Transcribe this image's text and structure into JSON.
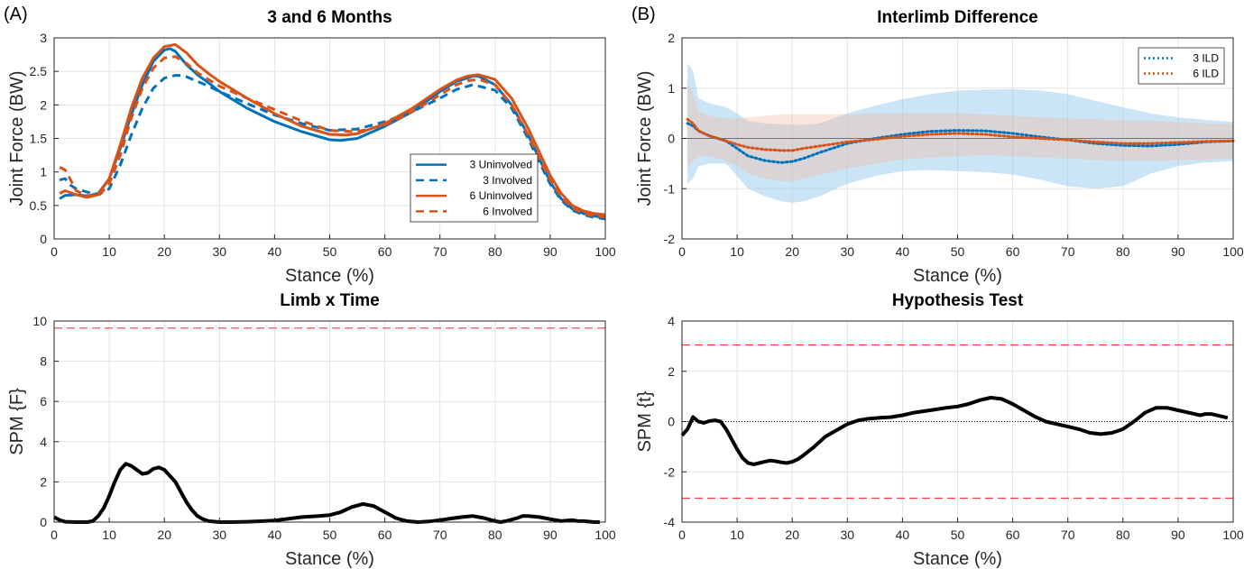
{
  "figure": {
    "panel_labels": [
      "(A)",
      "(B)"
    ]
  },
  "chart_data": [
    {
      "type": "line",
      "title": "3 and 6 Months",
      "xlabel": "Stance (%)",
      "ylabel": "Joint Force (BW)",
      "xlim": [
        0,
        100
      ],
      "ylim": [
        0,
        3
      ],
      "xticks": [
        0,
        10,
        20,
        30,
        40,
        50,
        60,
        70,
        80,
        90,
        100
      ],
      "yticks": [
        0,
        0.5,
        1,
        1.5,
        2,
        2.5,
        3
      ],
      "ytick_labels": [
        "0",
        "0.5",
        "1",
        "1.5",
        "2",
        "2.5",
        "3"
      ],
      "grid": true,
      "legend_position": "bottom-right",
      "series": [
        {
          "name": "3 Uninvolved",
          "color": "#0072BD",
          "style": "solid",
          "x": [
            1,
            2,
            4,
            6,
            8,
            10,
            12,
            14,
            16,
            18,
            20,
            21,
            22,
            24,
            26,
            28,
            30,
            35,
            40,
            45,
            50,
            52,
            55,
            60,
            65,
            70,
            73,
            76,
            77,
            80,
            83,
            86,
            88,
            90,
            92,
            94,
            96,
            98,
            100
          ],
          "y": [
            0.6,
            0.65,
            0.66,
            0.64,
            0.68,
            0.9,
            1.35,
            1.85,
            2.3,
            2.65,
            2.82,
            2.84,
            2.8,
            2.6,
            2.45,
            2.33,
            2.2,
            1.95,
            1.75,
            1.6,
            1.48,
            1.47,
            1.5,
            1.68,
            1.9,
            2.2,
            2.35,
            2.43,
            2.43,
            2.3,
            2.0,
            1.55,
            1.2,
            0.85,
            0.6,
            0.45,
            0.38,
            0.34,
            0.32
          ]
        },
        {
          "name": "3 Involved",
          "color": "#0072BD",
          "style": "dashed",
          "x": [
            1,
            2,
            3,
            4,
            6,
            8,
            10,
            12,
            14,
            16,
            18,
            20,
            22,
            23,
            24,
            26,
            28,
            30,
            35,
            40,
            45,
            50,
            55,
            60,
            65,
            70,
            73,
            76,
            80,
            83,
            86,
            88,
            90,
            92,
            94,
            96,
            98,
            100
          ],
          "y": [
            0.88,
            0.9,
            0.8,
            0.75,
            0.7,
            0.66,
            0.75,
            1.1,
            1.55,
            1.95,
            2.25,
            2.4,
            2.44,
            2.44,
            2.42,
            2.35,
            2.28,
            2.2,
            2.02,
            1.85,
            1.72,
            1.62,
            1.64,
            1.75,
            1.9,
            2.1,
            2.23,
            2.3,
            2.22,
            1.95,
            1.5,
            1.15,
            0.82,
            0.58,
            0.43,
            0.36,
            0.32,
            0.3
          ]
        },
        {
          "name": "6 Uninvolved",
          "color": "#D95319",
          "style": "solid",
          "x": [
            1,
            2,
            4,
            6,
            8,
            10,
            12,
            14,
            16,
            18,
            20,
            22,
            24,
            26,
            28,
            30,
            35,
            40,
            45,
            50,
            53,
            55,
            60,
            65,
            70,
            73,
            75,
            77,
            80,
            83,
            86,
            88,
            90,
            92,
            94,
            96,
            98,
            100
          ],
          "y": [
            0.68,
            0.72,
            0.66,
            0.62,
            0.66,
            0.9,
            1.4,
            1.95,
            2.4,
            2.7,
            2.87,
            2.9,
            2.78,
            2.6,
            2.47,
            2.35,
            2.1,
            1.87,
            1.68,
            1.56,
            1.55,
            1.57,
            1.72,
            1.95,
            2.23,
            2.37,
            2.43,
            2.45,
            2.38,
            2.1,
            1.65,
            1.3,
            0.95,
            0.68,
            0.5,
            0.42,
            0.38,
            0.36
          ]
        },
        {
          "name": "6 Involved",
          "color": "#D95319",
          "style": "dashed",
          "x": [
            1,
            2,
            3,
            4,
            6,
            8,
            10,
            12,
            14,
            16,
            18,
            20,
            22,
            24,
            26,
            28,
            30,
            35,
            40,
            45,
            50,
            55,
            60,
            65,
            70,
            73,
            75,
            77,
            80,
            83,
            86,
            88,
            90,
            92,
            94,
            96,
            98,
            100
          ],
          "y": [
            1.07,
            1.03,
            0.88,
            0.72,
            0.65,
            0.64,
            0.82,
            1.25,
            1.8,
            2.25,
            2.55,
            2.7,
            2.72,
            2.62,
            2.48,
            2.38,
            2.28,
            2.1,
            1.93,
            1.76,
            1.62,
            1.6,
            1.7,
            1.9,
            2.15,
            2.3,
            2.36,
            2.38,
            2.3,
            2.0,
            1.55,
            1.2,
            0.88,
            0.62,
            0.47,
            0.38,
            0.34,
            0.33
          ]
        }
      ]
    },
    {
      "type": "area",
      "title": "Interlimb Difference",
      "xlabel": "Stance (%)",
      "ylabel": "Joint Force (BW)",
      "xlim": [
        0,
        100
      ],
      "ylim": [
        -2,
        2
      ],
      "xticks": [
        0,
        10,
        20,
        30,
        40,
        50,
        60,
        70,
        80,
        90,
        100
      ],
      "yticks": [
        -2,
        -1,
        0,
        1,
        2
      ],
      "ytick_labels": [
        "-2",
        "-1",
        "0",
        "1",
        "2"
      ],
      "grid": true,
      "legend_position": "top-right",
      "series": [
        {
          "name": "3 ILD",
          "color": "#0072BD",
          "style": "dotted",
          "x": [
            1,
            2,
            3,
            5,
            8,
            10,
            12,
            15,
            18,
            20,
            22,
            25,
            30,
            35,
            40,
            45,
            50,
            55,
            60,
            65,
            70,
            75,
            80,
            85,
            90,
            95,
            100
          ],
          "y": [
            0.3,
            0.25,
            0.15,
            0.05,
            -0.05,
            -0.2,
            -0.35,
            -0.44,
            -0.48,
            -0.46,
            -0.4,
            -0.28,
            -0.1,
            0.0,
            0.08,
            0.14,
            0.16,
            0.15,
            0.1,
            0.03,
            -0.03,
            -0.1,
            -0.14,
            -0.15,
            -0.12,
            -0.07,
            -0.05
          ],
          "band_upper": [
            1.5,
            1.35,
            0.8,
            0.7,
            0.62,
            0.5,
            0.35,
            0.3,
            0.28,
            0.27,
            0.27,
            0.3,
            0.5,
            0.65,
            0.78,
            0.88,
            0.95,
            0.97,
            0.98,
            0.95,
            0.88,
            0.75,
            0.62,
            0.5,
            0.42,
            0.37,
            0.33
          ],
          "band_lower": [
            -0.9,
            -0.8,
            -0.55,
            -0.5,
            -0.5,
            -0.75,
            -1.0,
            -1.15,
            -1.25,
            -1.28,
            -1.25,
            -1.15,
            -0.9,
            -0.75,
            -0.65,
            -0.63,
            -0.65,
            -0.67,
            -0.72,
            -0.82,
            -0.95,
            -1.0,
            -0.95,
            -0.7,
            -0.55,
            -0.48,
            -0.45
          ]
        },
        {
          "name": "6 ILD",
          "color": "#D95319",
          "style": "dotted",
          "x": [
            1,
            2,
            3,
            5,
            8,
            10,
            12,
            15,
            18,
            20,
            22,
            25,
            30,
            35,
            40,
            45,
            50,
            55,
            60,
            65,
            70,
            75,
            80,
            85,
            90,
            95,
            100
          ],
          "y": [
            0.38,
            0.3,
            0.15,
            0.05,
            -0.05,
            -0.12,
            -0.18,
            -0.22,
            -0.24,
            -0.24,
            -0.2,
            -0.15,
            -0.07,
            -0.02,
            0.04,
            0.08,
            0.1,
            0.08,
            0.03,
            0.0,
            -0.03,
            -0.07,
            -0.1,
            -0.1,
            -0.08,
            -0.06,
            -0.05
          ],
          "band_upper": [
            1.1,
            0.9,
            0.55,
            0.45,
            0.4,
            0.4,
            0.42,
            0.45,
            0.48,
            0.48,
            0.48,
            0.48,
            0.48,
            0.5,
            0.5,
            0.5,
            0.5,
            0.48,
            0.45,
            0.42,
            0.4,
            0.38,
            0.36,
            0.35,
            0.33,
            0.3,
            0.28
          ],
          "band_lower": [
            -0.6,
            -0.45,
            -0.35,
            -0.35,
            -0.45,
            -0.55,
            -0.7,
            -0.8,
            -0.85,
            -0.85,
            -0.8,
            -0.72,
            -0.6,
            -0.5,
            -0.42,
            -0.38,
            -0.35,
            -0.33,
            -0.35,
            -0.38,
            -0.4,
            -0.43,
            -0.45,
            -0.45,
            -0.43,
            -0.42,
            -0.4
          ]
        }
      ]
    },
    {
      "type": "line",
      "title": "Limb x Time",
      "xlabel": "Stance (%)",
      "ylabel": "SPM {F}",
      "xlim": [
        0,
        100
      ],
      "ylim": [
        0,
        10
      ],
      "xticks": [
        0,
        10,
        20,
        30,
        40,
        50,
        60,
        70,
        80,
        90,
        100
      ],
      "yticks": [
        0,
        2,
        4,
        6,
        8,
        10
      ],
      "ytick_labels": [
        "0",
        "2",
        "4",
        "6",
        "8",
        "10"
      ],
      "grid": true,
      "threshold": 9.65,
      "series": [
        {
          "name": "",
          "color": "#000000",
          "style": "solid",
          "x": [
            0,
            1,
            2,
            4,
            6,
            7,
            8,
            9,
            10,
            11,
            12,
            13,
            14,
            15,
            16,
            17,
            18,
            19,
            20,
            21,
            22,
            23,
            24,
            25,
            26,
            27,
            28,
            30,
            32,
            35,
            38,
            40,
            42,
            45,
            48,
            50,
            52,
            54,
            56,
            58,
            60,
            62,
            64,
            66,
            68,
            70,
            72,
            74,
            76,
            78,
            80,
            81,
            82,
            84,
            85,
            86,
            88,
            90,
            92,
            94,
            95,
            96,
            98,
            99
          ],
          "y": [
            0.25,
            0.1,
            0.02,
            0.0,
            0.0,
            0.05,
            0.3,
            0.7,
            1.3,
            2.0,
            2.6,
            2.9,
            2.8,
            2.6,
            2.4,
            2.45,
            2.65,
            2.72,
            2.6,
            2.3,
            2.0,
            1.5,
            1.0,
            0.6,
            0.3,
            0.15,
            0.05,
            0.0,
            0.0,
            0.02,
            0.05,
            0.08,
            0.15,
            0.25,
            0.3,
            0.35,
            0.5,
            0.75,
            0.9,
            0.8,
            0.5,
            0.2,
            0.05,
            0.0,
            0.03,
            0.1,
            0.18,
            0.25,
            0.3,
            0.2,
            0.05,
            0.0,
            0.05,
            0.2,
            0.3,
            0.3,
            0.25,
            0.15,
            0.05,
            0.1,
            0.05,
            0.05,
            0.0,
            0.0
          ]
        }
      ]
    },
    {
      "type": "line",
      "title": "Hypothesis Test",
      "xlabel": "Stance (%)",
      "ylabel": "SPM {t}",
      "xlim": [
        0,
        100
      ],
      "ylim": [
        -4,
        4
      ],
      "xticks": [
        0,
        10,
        20,
        30,
        40,
        50,
        60,
        70,
        80,
        90,
        100
      ],
      "yticks": [
        -4,
        -2,
        0,
        2,
        4
      ],
      "ytick_labels": [
        "-4",
        "-2",
        "0",
        "2",
        "4"
      ],
      "grid": true,
      "threshold_upper": 3.05,
      "threshold_lower": -3.05,
      "series": [
        {
          "name": "",
          "color": "#000000",
          "style": "solid",
          "x": [
            0,
            1,
            2,
            3,
            4,
            5,
            6,
            7,
            8,
            9,
            10,
            11,
            12,
            13,
            14,
            15,
            16,
            17,
            18,
            19,
            20,
            21,
            22,
            24,
            26,
            28,
            30,
            32,
            34,
            36,
            38,
            40,
            42,
            45,
            48,
            50,
            52,
            54,
            56,
            58,
            60,
            62,
            64,
            66,
            68,
            70,
            72,
            74,
            76,
            78,
            80,
            82,
            84,
            86,
            88,
            90,
            92,
            94,
            95,
            96,
            98,
            99
          ],
          "y": [
            -0.55,
            -0.3,
            0.18,
            0.0,
            -0.05,
            0.02,
            0.05,
            0.0,
            -0.3,
            -0.7,
            -1.1,
            -1.45,
            -1.65,
            -1.7,
            -1.65,
            -1.6,
            -1.55,
            -1.58,
            -1.62,
            -1.65,
            -1.6,
            -1.5,
            -1.35,
            -1.0,
            -0.6,
            -0.35,
            -0.1,
            0.05,
            0.12,
            0.15,
            0.18,
            0.25,
            0.35,
            0.45,
            0.55,
            0.6,
            0.7,
            0.85,
            0.95,
            0.9,
            0.7,
            0.45,
            0.2,
            0.0,
            -0.1,
            -0.2,
            -0.3,
            -0.45,
            -0.5,
            -0.45,
            -0.3,
            0.0,
            0.35,
            0.55,
            0.55,
            0.45,
            0.35,
            0.25,
            0.3,
            0.3,
            0.2,
            0.15
          ]
        }
      ]
    }
  ]
}
